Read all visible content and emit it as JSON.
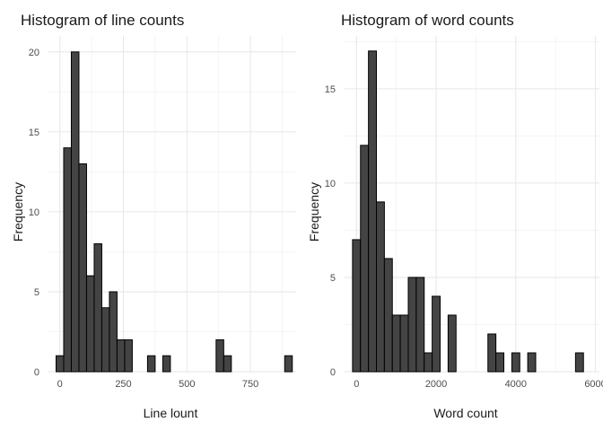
{
  "chart_data": [
    {
      "type": "bar",
      "title": "Histogram of line counts",
      "xlabel": "Line lount",
      "ylabel": "Frequency",
      "binwidth": 30,
      "bins_start": -15,
      "counts": [
        1,
        14,
        20,
        13,
        6,
        8,
        4,
        5,
        2,
        2,
        0,
        0,
        1,
        0,
        1,
        0,
        0,
        0,
        0,
        0,
        0,
        2,
        1,
        0,
        0,
        0,
        0,
        0,
        0,
        0,
        1
      ],
      "xlim": [
        -45,
        930
      ],
      "ylim": [
        0,
        21
      ],
      "x_ticks": [
        0,
        250,
        500,
        750
      ],
      "x_tick_labels": [
        "0",
        "250",
        "500",
        "750"
      ],
      "y_ticks": [
        0,
        5,
        10,
        15,
        20
      ],
      "y_tick_labels": [
        "0",
        "5",
        "10",
        "15",
        "20"
      ],
      "grid": true
    },
    {
      "type": "bar",
      "title": "Histogram of word counts",
      "xlabel": "Word count",
      "ylabel": "Frequency",
      "binwidth": 200,
      "bins_start": -100,
      "counts": [
        7,
        12,
        17,
        9,
        6,
        3,
        3,
        5,
        5,
        1,
        4,
        0,
        3,
        0,
        0,
        0,
        0,
        2,
        1,
        0,
        1,
        0,
        1,
        0,
        0,
        0,
        0,
        0,
        1
      ],
      "xlim": [
        -300,
        6100
      ],
      "ylim": [
        0,
        17.8
      ],
      "x_ticks": [
        0,
        2000,
        4000,
        6000
      ],
      "x_tick_labels": [
        "0",
        "2000",
        "4000",
        "6000"
      ],
      "y_ticks": [
        0,
        5,
        10,
        15
      ],
      "y_tick_labels": [
        "0",
        "5",
        "10",
        "15"
      ],
      "grid": true
    }
  ]
}
